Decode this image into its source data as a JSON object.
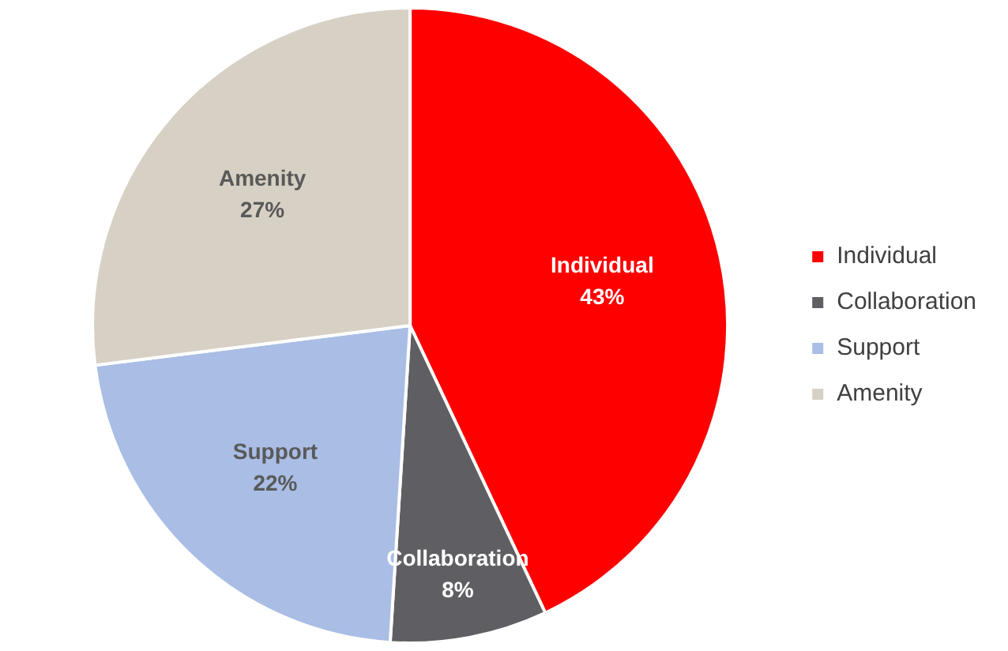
{
  "chart_data": {
    "type": "pie",
    "categories": [
      "Individual",
      "Collaboration",
      "Support",
      "Amenity"
    ],
    "values": [
      43,
      8,
      22,
      27
    ],
    "colors": [
      "#ff0000",
      "#5f5f63",
      "#a9bde5",
      "#d7d0c4"
    ],
    "value_labels": [
      "43%",
      "8%",
      "22%",
      "27%"
    ],
    "legend": "right"
  }
}
